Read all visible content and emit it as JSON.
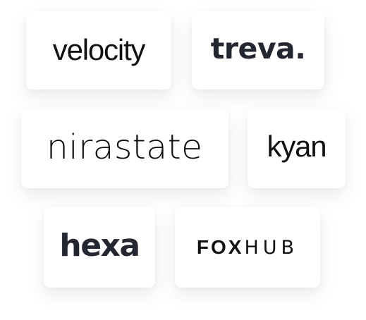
{
  "logos": {
    "velocity": "velocity",
    "treva": "treva.",
    "nirastate": "nirastate",
    "kyan": "kyan",
    "hexa": "hexa",
    "foxhub": {
      "part1": "FOX",
      "part2": "HUB"
    }
  },
  "colors": {
    "card_background": "#ffffff",
    "logo_dark": "#111111",
    "logo_slate": "#242631"
  }
}
